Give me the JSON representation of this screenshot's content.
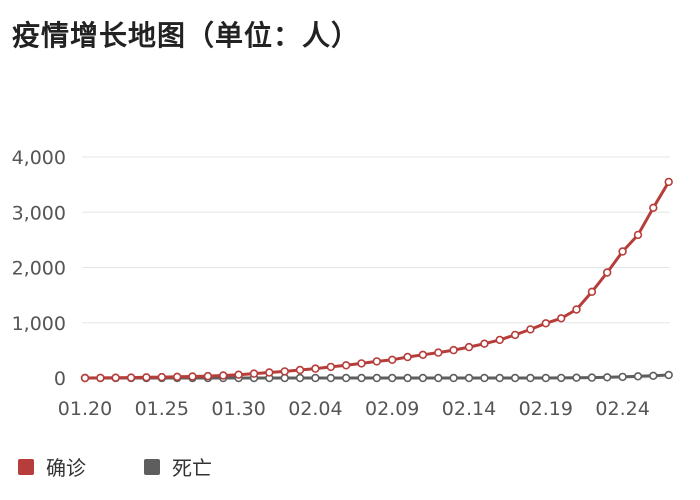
{
  "chart_data": {
    "type": "line",
    "title": "疫情增长地图（单位：人）",
    "xlabel": "",
    "ylabel": "",
    "ylim": [
      0,
      4000
    ],
    "y_ticks": [
      "4,000",
      "3,000",
      "2,000",
      "1,000",
      "0"
    ],
    "y_tick_values": [
      4000,
      3000,
      2000,
      1000,
      0
    ],
    "x_tick_labels": [
      "01.20",
      "01.25",
      "01.30",
      "02.04",
      "02.09",
      "02.14",
      "02.19",
      "02.24"
    ],
    "x_tick_indices": [
      0,
      5,
      10,
      15,
      20,
      25,
      30,
      35
    ],
    "grid": true,
    "legend_position": "bottom-left",
    "series": [
      {
        "name": "确诊",
        "color": "#b63d39",
        "values": [
          0,
          2,
          5,
          8,
          12,
          17,
          22,
          28,
          35,
          45,
          60,
          80,
          100,
          120,
          145,
          170,
          200,
          230,
          265,
          300,
          330,
          380,
          420,
          460,
          505,
          560,
          620,
          690,
          780,
          880,
          990,
          1080,
          1240,
          1560,
          1910,
          2290,
          2590,
          3080,
          3550
        ]
      },
      {
        "name": "死亡",
        "color": "#5e5e5e",
        "values": [
          0,
          0,
          0,
          0,
          0,
          0,
          0,
          0,
          0,
          0,
          0,
          0,
          0,
          0,
          0,
          0,
          0,
          0,
          0,
          0,
          0,
          0,
          0,
          0,
          0,
          0,
          0,
          0,
          0,
          0,
          0,
          2,
          5,
          8,
          12,
          20,
          30,
          40,
          55
        ]
      }
    ]
  }
}
